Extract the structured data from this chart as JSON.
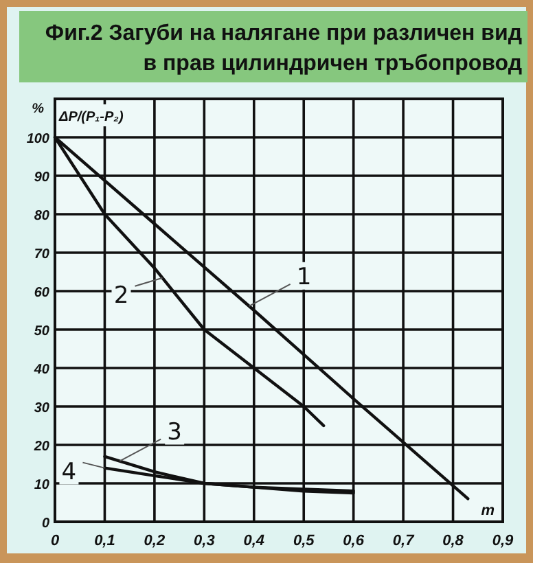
{
  "chart_data": {
    "type": "line",
    "title": "Фиг.2 Загуби на налягане при различен вид в прав цилиндричен тръбопровод",
    "xlabel": "m",
    "ylabel": "ΔP/(P₁-P₂)",
    "annotations": [
      "%"
    ],
    "xlim": [
      0,
      0.9
    ],
    "ylim": [
      0,
      110
    ],
    "xticks": [
      0,
      {
        "value": 0.1,
        "label": "0,1"
      },
      {
        "value": 0.2,
        "label": "0,2"
      },
      {
        "value": 0.3,
        "label": "0,3"
      },
      {
        "value": 0.4,
        "label": "0,4"
      },
      {
        "value": 0.5,
        "label": "0,5"
      },
      {
        "value": 0.6,
        "label": "0,6"
      },
      {
        "value": 0.7,
        "label": "0,7"
      },
      {
        "value": 0.8,
        "label": "0,8"
      },
      {
        "value": 0.9,
        "label": "0,9"
      }
    ],
    "yticks": [
      0,
      10,
      20,
      30,
      40,
      50,
      60,
      70,
      80,
      90,
      100
    ],
    "grid": true,
    "marker": "none",
    "line_style": "solid",
    "series": [
      {
        "name": "1",
        "color": "#111111",
        "x": [
          0,
          0.2,
          0.4,
          0.6,
          0.83
        ],
        "values": [
          100,
          77.5,
          55,
          32,
          6
        ]
      },
      {
        "name": "2",
        "color": "#111111",
        "x": [
          0,
          0.1,
          0.2,
          0.3,
          0.4,
          0.5,
          0.54
        ],
        "values": [
          100,
          80,
          66,
          50,
          40,
          30,
          25
        ]
      },
      {
        "name": "3",
        "color": "#111111",
        "x": [
          0.1,
          0.2,
          0.3,
          0.4,
          0.5,
          0.6
        ],
        "values": [
          17,
          13,
          10,
          9,
          8.5,
          8
        ]
      },
      {
        "name": "4",
        "color": "#111111",
        "x": [
          0.1,
          0.2,
          0.3,
          0.4,
          0.5,
          0.6
        ],
        "values": [
          14,
          12,
          10,
          9,
          8,
          7.5
        ]
      }
    ]
  }
}
